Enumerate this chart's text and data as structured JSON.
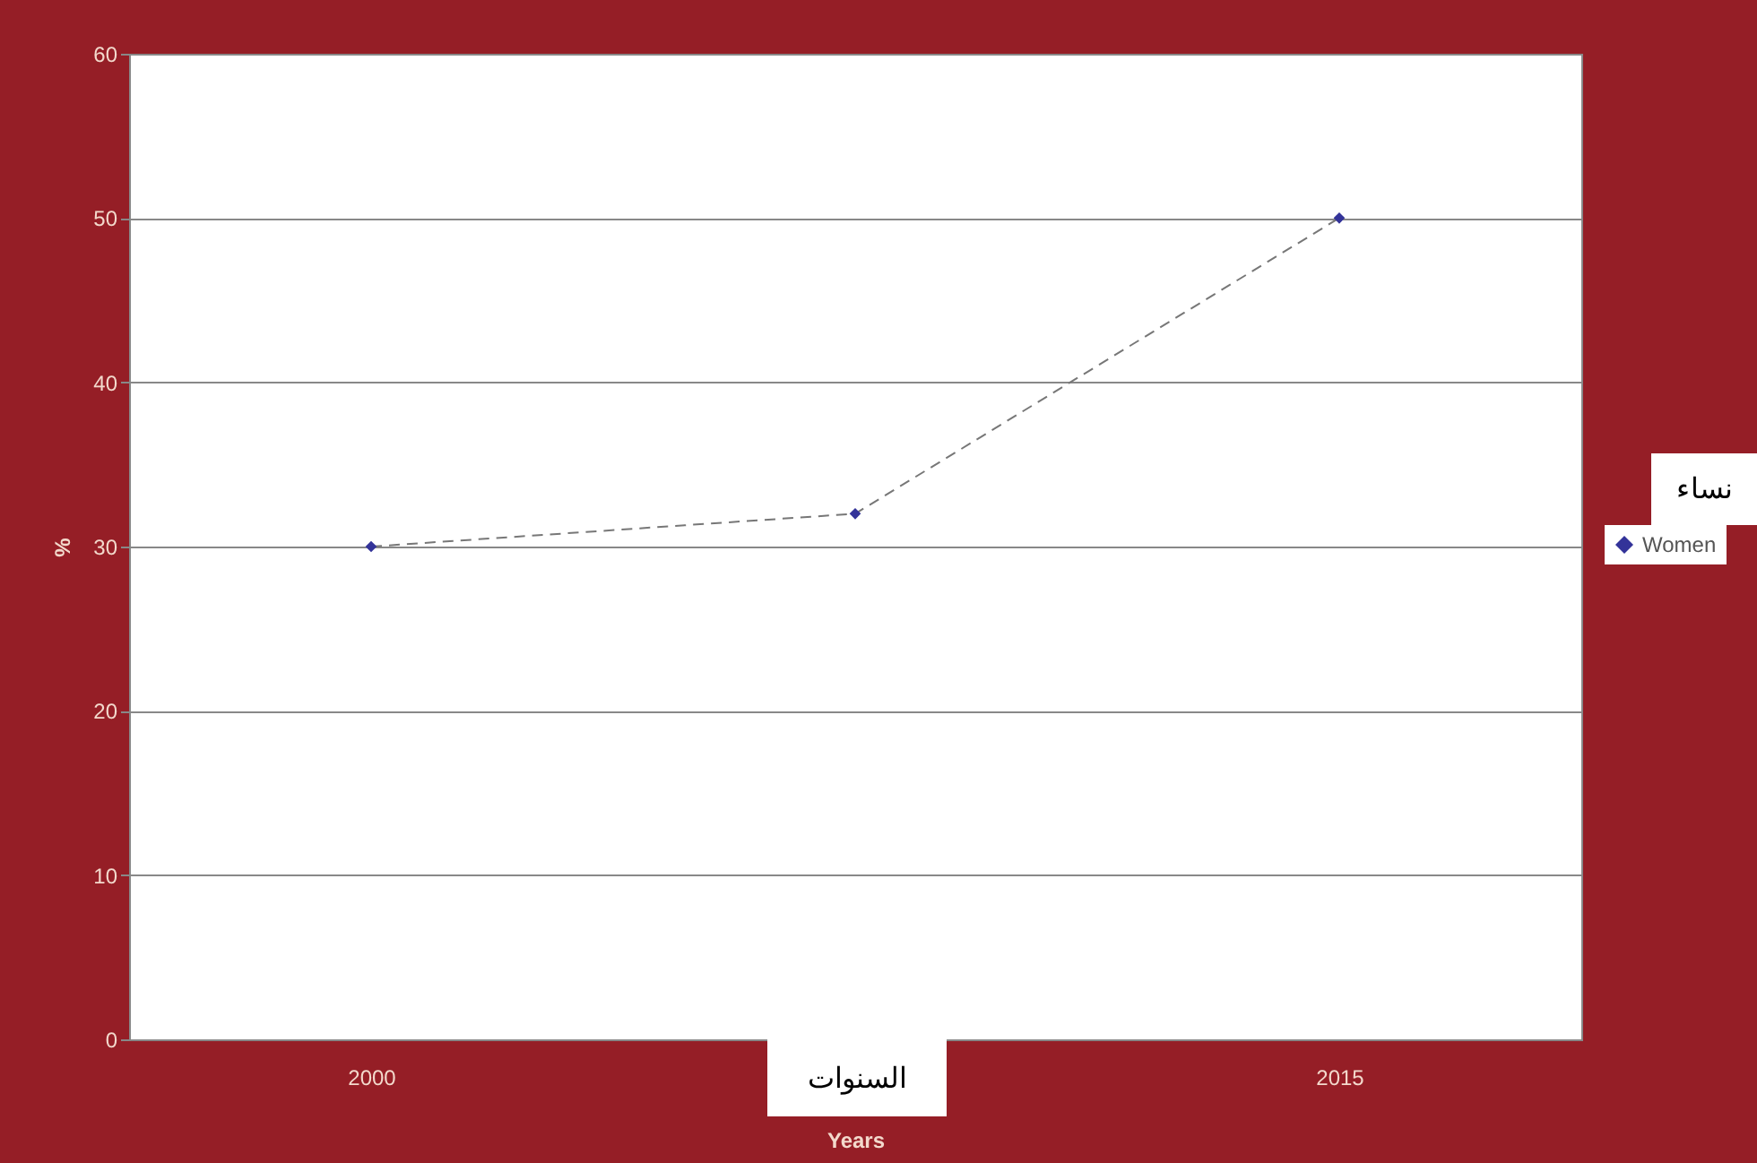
{
  "chart_data": {
    "type": "line",
    "xlabel": "Years",
    "ylabel": "%",
    "categories": [
      "2000",
      null,
      "2015"
    ],
    "series": [
      {
        "name": "Women",
        "color": "#333399",
        "values": [
          30,
          32,
          50
        ]
      }
    ],
    "ylim": [
      0,
      60
    ],
    "yticks": [
      0,
      10,
      20,
      30,
      40,
      50,
      60
    ],
    "grid": "y",
    "legend": "right",
    "marker": "diamond",
    "line_style": "dashed",
    "annotations": [
      "السنوات",
      "نساء"
    ]
  }
}
